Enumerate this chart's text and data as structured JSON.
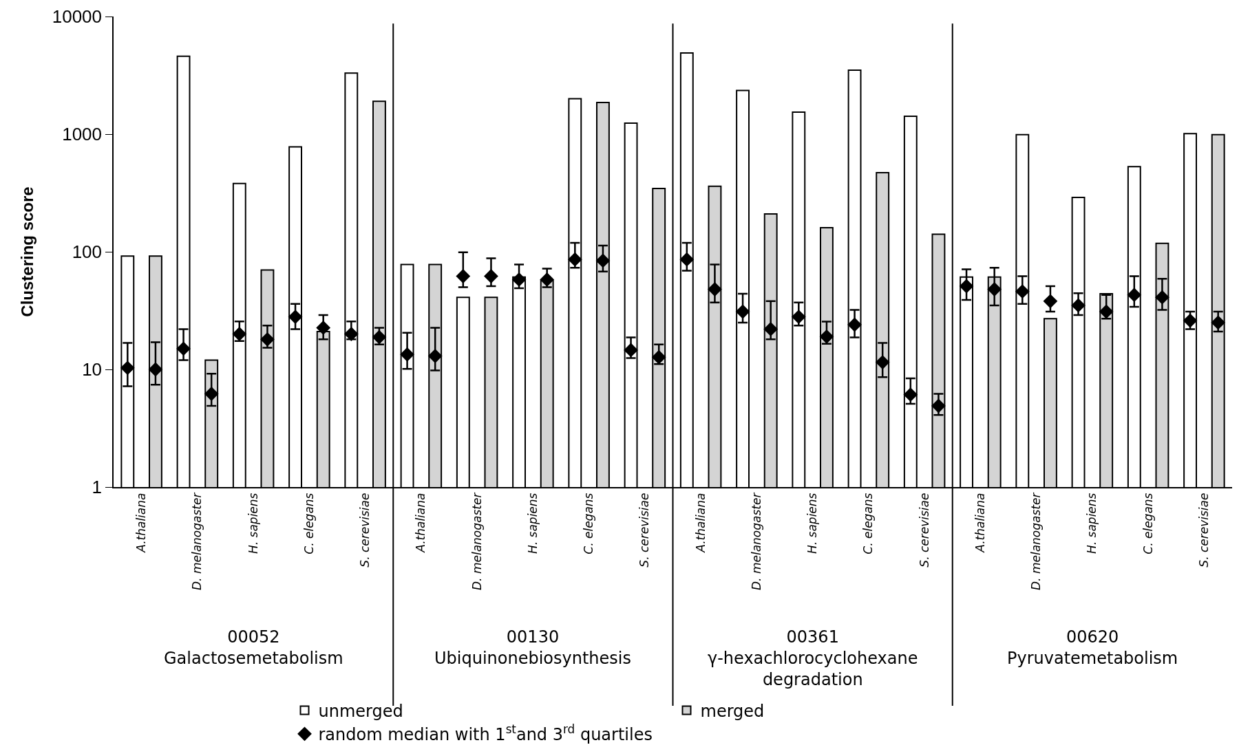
{
  "chart_data": {
    "type": "bar",
    "ylabel": "Clustering score",
    "log": true,
    "ylim": [
      1,
      10000
    ],
    "yticks": [
      1,
      10,
      100,
      1000,
      10000
    ],
    "legend": "bottom",
    "categories": [
      "A.thaliana",
      "D. melanogaster",
      "H. sapiens",
      "C. elegans",
      "S. cerevisiae",
      "A.thaliana",
      "D. melanogaster",
      "H. sapiens",
      "C. elegans",
      "S. cerevisiae",
      "A.thaliana",
      "D. melanogaster",
      "H. sapiens",
      "C. elegans",
      "S. cerevisiae",
      "A.thaliana",
      "D. melanogaster",
      "H. sapiens",
      "C. elegans",
      "S. cerevisiae"
    ],
    "series": [
      {
        "name": "unmerged",
        "color": "#ffffff",
        "values": [
          92,
          4600,
          380,
          780,
          3300,
          78,
          41,
          61,
          2000,
          1240,
          4900,
          2350,
          1540,
          3500,
          1420,
          61,
          990,
          290,
          530,
          1010
        ]
      },
      {
        "name": "merged",
        "color": "#d4d4d4",
        "values": [
          92,
          12,
          70,
          21,
          1900,
          78,
          41,
          57,
          1860,
          345,
          360,
          210,
          160,
          470,
          141,
          61,
          27,
          44,
          118,
          990
        ]
      },
      {
        "name": "random median with 1$^{st}$and 3$^{rd}$ quartiles",
        "type": "scatter",
        "color": "#000000",
        "marker": "diamond",
        "values": [
          10.3,
          15,
          20,
          28,
          20,
          13.4,
          62,
          58,
          86,
          14.6,
          86,
          31,
          28,
          24,
          6.1,
          51,
          46,
          35,
          43,
          26
        ],
        "errors": [
          [
            7.2,
            16.8
          ],
          [
            12,
            22
          ],
          [
            17.4,
            25.6
          ],
          [
            22,
            36
          ],
          [
            18,
            25.6
          ],
          [
            10.1,
            20.5
          ],
          [
            50,
            99
          ],
          [
            49,
            78
          ],
          [
            73,
            119
          ],
          [
            12.5,
            18.7
          ],
          [
            69,
            119
          ],
          [
            25,
            44
          ],
          [
            23.6,
            37
          ],
          [
            18.7,
            32
          ],
          [
            5.1,
            8.4
          ],
          [
            39,
            71
          ],
          [
            36,
            62
          ],
          [
            29,
            44.5
          ],
          [
            34,
            62
          ],
          [
            22,
            31
          ]
        ]
      },
      {
        "type": "scatter",
        "color": "#000000",
        "marker": "diamond",
        "values": [
          10,
          6.2,
          18,
          22.6,
          18.8,
          13,
          62,
          58,
          84,
          12.7,
          48,
          22,
          19,
          11.5,
          4.9,
          48,
          38,
          31,
          41,
          25
        ],
        "errors": [
          [
            7.4,
            17
          ],
          [
            4.9,
            9.2
          ],
          [
            15.3,
            23.6
          ],
          [
            18,
            29
          ],
          [
            16.3,
            22.6
          ],
          [
            9.8,
            22.6
          ],
          [
            51,
            88
          ],
          [
            50,
            72
          ],
          [
            68,
            113
          ],
          [
            11.1,
            16.3
          ],
          [
            37,
            78
          ],
          [
            18,
            38
          ],
          [
            16.5,
            25.5
          ],
          [
            8.6,
            16.8
          ],
          [
            4.1,
            6.2
          ],
          [
            35,
            73
          ],
          [
            31,
            51
          ],
          [
            27,
            43
          ],
          [
            32,
            59
          ],
          [
            21,
            31
          ]
        ]
      }
    ],
    "annotations": [
      "00052\nGalactosemetabolism",
      "00130\nUbiquinonebiosynthesis",
      "00361\nγ-hexachlorocyclohexane\ndegradation",
      "00620\nPyruvatemetabolism"
    ]
  }
}
